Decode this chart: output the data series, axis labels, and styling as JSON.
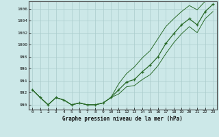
{
  "xlabel": "Graphe pression niveau de la mer (hPa)",
  "hours": [
    0,
    1,
    2,
    3,
    4,
    5,
    6,
    7,
    8,
    9,
    10,
    11,
    12,
    13,
    14,
    15,
    16,
    17,
    18,
    19,
    20,
    21,
    22,
    23
  ],
  "line_main": [
    992.5,
    991.2,
    990.0,
    991.2,
    990.8,
    990.0,
    990.3,
    990.0,
    990.0,
    990.3,
    991.2,
    992.5,
    993.8,
    994.2,
    995.5,
    996.6,
    998.0,
    1000.2,
    1001.8,
    1003.3,
    1004.3,
    1003.3,
    1005.5,
    1006.7
  ],
  "line_upper": [
    992.5,
    991.2,
    990.0,
    991.2,
    990.8,
    990.0,
    990.3,
    990.0,
    990.0,
    990.3,
    991.2,
    993.5,
    995.2,
    996.3,
    997.8,
    999.0,
    1001.0,
    1003.0,
    1004.3,
    1005.5,
    1006.5,
    1005.8,
    1007.2,
    1008.0
  ],
  "line_lower": [
    992.5,
    991.2,
    990.0,
    991.2,
    990.8,
    990.0,
    990.3,
    990.0,
    990.0,
    990.3,
    991.2,
    991.8,
    993.0,
    993.2,
    994.2,
    995.0,
    996.5,
    998.5,
    1000.3,
    1001.8,
    1003.0,
    1002.0,
    1004.3,
    1005.5
  ],
  "line_dotted": [
    992.5,
    991.2,
    990.0,
    991.2,
    990.8,
    990.0,
    990.3,
    990.0,
    990.0,
    990.3,
    991.2,
    null,
    null,
    null,
    null,
    null,
    null,
    null,
    null,
    null,
    null,
    null,
    null,
    null
  ],
  "line_color": "#2a6b2a",
  "bg_color": "#cce8e8",
  "grid_color": "#aacccc",
  "ylim": [
    989.2,
    1007.2
  ],
  "yticks": [
    990,
    992,
    994,
    996,
    998,
    1000,
    1002,
    1004,
    1006
  ],
  "xticks": [
    0,
    1,
    2,
    3,
    4,
    5,
    6,
    7,
    8,
    9,
    10,
    11,
    12,
    13,
    14,
    15,
    16,
    17,
    18,
    19,
    20,
    21,
    22,
    23
  ]
}
